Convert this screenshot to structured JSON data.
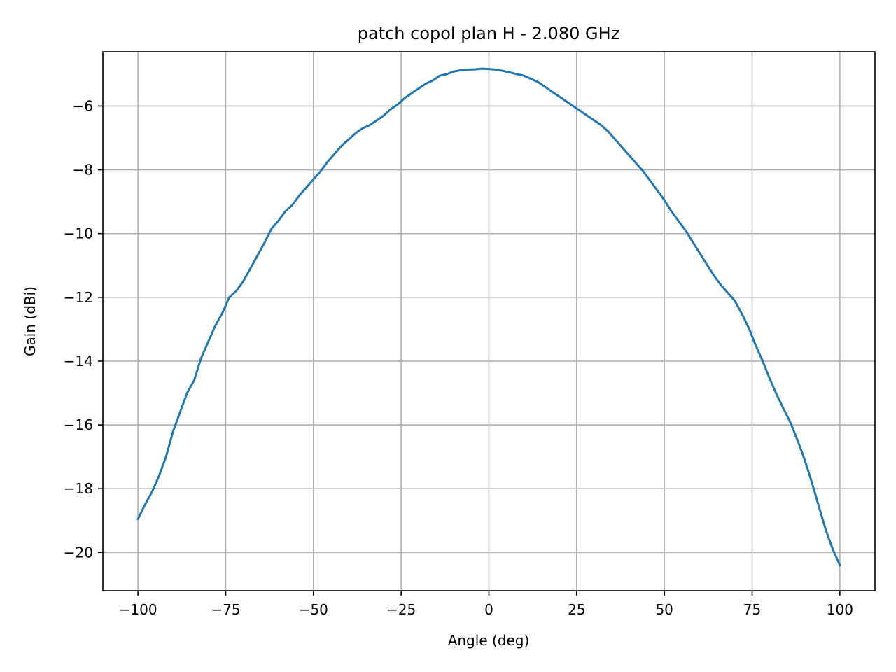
{
  "chart_data": {
    "type": "line",
    "title": "patch copol plan H - 2.080 GHz",
    "xlabel": "Angle (deg)",
    "ylabel": "Gain (dBi)",
    "xlim": [
      -110,
      110
    ],
    "ylim": [
      -21.2,
      -4.3
    ],
    "grid": true,
    "xticks": [
      -100,
      -75,
      -50,
      -25,
      0,
      25,
      50,
      75,
      100
    ],
    "xtick_labels": [
      "−100",
      "−75",
      "−50",
      "−25",
      "0",
      "25",
      "50",
      "75",
      "100"
    ],
    "yticks": [
      -20,
      -18,
      -16,
      -14,
      -12,
      -10,
      -8,
      -6
    ],
    "ytick_labels": [
      "−20",
      "−18",
      "−16",
      "−14",
      "−12",
      "−10",
      "−8",
      "−6"
    ],
    "series": [
      {
        "color": "#1f77b4",
        "x": [
          -100,
          -98,
          -96,
          -94,
          -92,
          -90,
          -88,
          -86,
          -84,
          -82,
          -80,
          -78,
          -76,
          -74,
          -72,
          -70,
          -68,
          -66,
          -64,
          -62,
          -60,
          -58,
          -56,
          -54,
          -52,
          -50,
          -48,
          -46,
          -44,
          -42,
          -40,
          -38,
          -36,
          -34,
          -32,
          -30,
          -28,
          -26,
          -24,
          -22,
          -20,
          -18,
          -16,
          -14,
          -12,
          -10,
          -8,
          -6,
          -4,
          -2,
          0,
          2,
          4,
          6,
          8,
          10,
          12,
          14,
          16,
          18,
          20,
          22,
          24,
          26,
          28,
          30,
          32,
          34,
          36,
          38,
          40,
          42,
          44,
          46,
          48,
          50,
          52,
          54,
          56,
          58,
          60,
          62,
          64,
          66,
          68,
          70,
          72,
          74,
          76,
          78,
          80,
          82,
          84,
          86,
          88,
          90,
          92,
          94,
          96,
          98,
          100
        ],
        "y": [
          -18.95,
          -18.5,
          -18.1,
          -17.6,
          -17.0,
          -16.2,
          -15.6,
          -15.0,
          -14.6,
          -13.9,
          -13.4,
          -12.9,
          -12.5,
          -12.0,
          -11.8,
          -11.5,
          -11.1,
          -10.7,
          -10.3,
          -9.85,
          -9.6,
          -9.3,
          -9.1,
          -8.8,
          -8.55,
          -8.3,
          -8.05,
          -7.75,
          -7.5,
          -7.25,
          -7.05,
          -6.85,
          -6.7,
          -6.6,
          -6.45,
          -6.3,
          -6.1,
          -5.95,
          -5.75,
          -5.6,
          -5.45,
          -5.3,
          -5.2,
          -5.05,
          -5.0,
          -4.92,
          -4.88,
          -4.86,
          -4.85,
          -4.83,
          -4.84,
          -4.86,
          -4.9,
          -4.95,
          -5.0,
          -5.05,
          -5.15,
          -5.25,
          -5.4,
          -5.55,
          -5.7,
          -5.85,
          -6.0,
          -6.15,
          -6.3,
          -6.45,
          -6.6,
          -6.8,
          -7.05,
          -7.3,
          -7.55,
          -7.8,
          -8.05,
          -8.35,
          -8.65,
          -8.95,
          -9.3,
          -9.6,
          -9.9,
          -10.25,
          -10.6,
          -10.95,
          -11.3,
          -11.6,
          -11.85,
          -12.1,
          -12.5,
          -12.95,
          -13.5,
          -14.0,
          -14.55,
          -15.05,
          -15.5,
          -15.95,
          -16.5,
          -17.1,
          -17.8,
          -18.55,
          -19.3,
          -19.9,
          -20.4
        ]
      }
    ]
  }
}
